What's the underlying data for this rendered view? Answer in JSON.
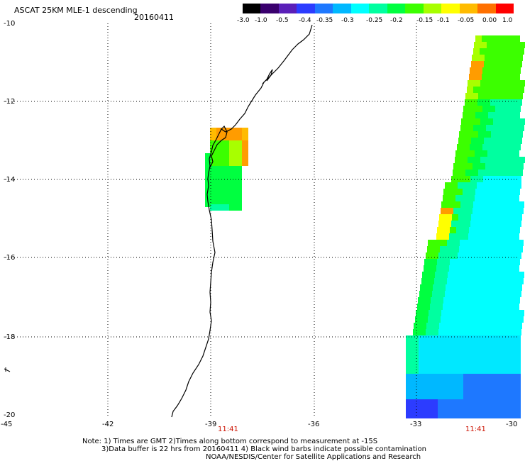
{
  "header": {
    "title": "ASCAT 25KM MLE-1 descending",
    "date": "20160411"
  },
  "colorbar": {
    "labels": [
      "-3.0",
      "-1.0",
      "-0.5",
      "-0.4",
      "-0.35",
      "-0.3",
      "-0.25",
      "-0.2",
      "-0.15",
      "-0.1",
      "-0.05",
      "0.00",
      "1.0"
    ],
    "colors": [
      "#000000",
      "#3a006e",
      "#5a1fb8",
      "#2c3cff",
      "#1e78ff",
      "#00b8ff",
      "#00ffff",
      "#00ffa0",
      "#00ff40",
      "#3cff00",
      "#a8ff00",
      "#ffff00",
      "#ffbb00",
      "#ff7000",
      "#ff0000"
    ]
  },
  "axes": {
    "y_ticks": [
      "-10",
      "-12",
      "-14",
      "-16",
      "-18",
      "-20"
    ],
    "x_ticks": [
      "-45",
      "-42",
      "-39",
      "-36",
      "-33",
      "-30"
    ],
    "times": [
      "11:41",
      "11:41"
    ]
  },
  "notes": {
    "line1": "Note: 1) Times are GMT 2)Times along bottom correspond to measurement at -15S",
    "line2": "3)Data buffer is 22 hrs from 20160411 4) Black wind barbs indicate possible contamination",
    "line3": "NOAA/NESDIS/Center for Satellite Applications and Research"
  }
}
